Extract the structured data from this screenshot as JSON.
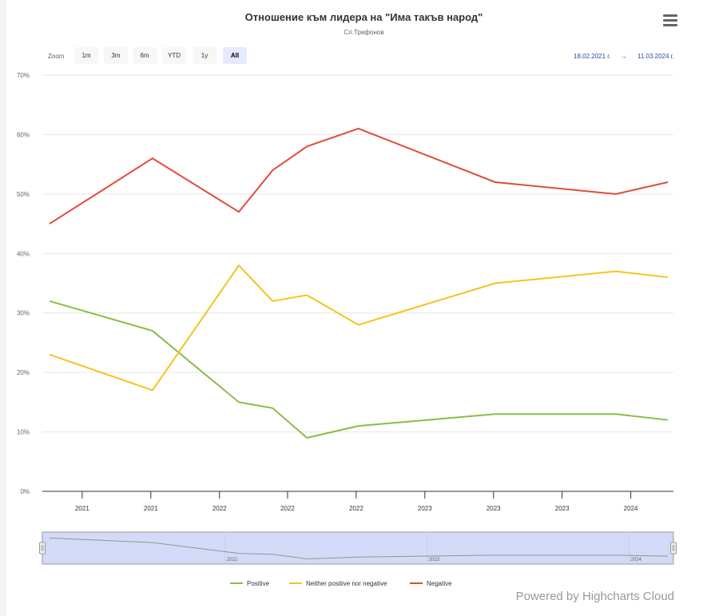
{
  "title": "Отношение към лидера на \"Има такъв народ\"",
  "subtitle": "Сл.Трифонов",
  "range_selector": {
    "label": "Zoom",
    "buttons": [
      "1m",
      "3m",
      "6m",
      "YTD",
      "1y",
      "All"
    ],
    "selected": "All"
  },
  "date_range": {
    "from": "18.02.2021 г.",
    "separator": "→",
    "to": "11.03.2024 г."
  },
  "credits": "Powered by Highcharts Cloud",
  "colors": {
    "Positive": "#8bbc48",
    "Neither positive nor negative": "#f3c41c",
    "Negative": "#e04c3c",
    "navigator": "#d3daf8"
  },
  "chart_data": {
    "type": "line",
    "title": "Отношение към лидера на \"Има такъв народ\"",
    "subtitle": "Сл.Трифонов",
    "x": [
      "2021-02-18",
      "2021-08-23",
      "2022-01-26",
      "2022-03-28",
      "2022-05-29",
      "2022-08-30",
      "2023-05-04",
      "2023-12-08",
      "2024-03-11"
    ],
    "series": [
      {
        "name": "Positive",
        "values": [
          32,
          27,
          15,
          14,
          9,
          11,
          13,
          13,
          12
        ]
      },
      {
        "name": "Neither positive nor negative",
        "values": [
          23,
          17,
          38,
          32,
          33,
          28,
          35,
          37,
          36
        ]
      },
      {
        "name": "Negative",
        "values": [
          45,
          56,
          47,
          54,
          58,
          61,
          52,
          50,
          52
        ]
      }
    ],
    "ylim": [
      0,
      70
    ],
    "yticks": [
      "0%",
      "10%",
      "20%",
      "30%",
      "40%",
      "50%",
      "60%",
      "70%"
    ],
    "xticks": [
      {
        "date": "2021-04-18",
        "label": "2021"
      },
      {
        "date": "2021-08-20",
        "label": "2021"
      },
      {
        "date": "2021-12-22",
        "label": "2022"
      },
      {
        "date": "2022-04-24",
        "label": "2022"
      },
      {
        "date": "2022-08-26",
        "label": "2022"
      },
      {
        "date": "2022-12-28",
        "label": "2023"
      },
      {
        "date": "2023-05-01",
        "label": "2023"
      },
      {
        "date": "2023-09-02",
        "label": "2023"
      },
      {
        "date": "2024-01-04",
        "label": "2024"
      }
    ],
    "navigator_ticks": [
      {
        "date": "2022-01-01",
        "label": "2022"
      },
      {
        "date": "2023-01-01",
        "label": "2023"
      },
      {
        "date": "2024-01-01",
        "label": "2024"
      }
    ],
    "grid": true,
    "legend": "bottom-center"
  }
}
